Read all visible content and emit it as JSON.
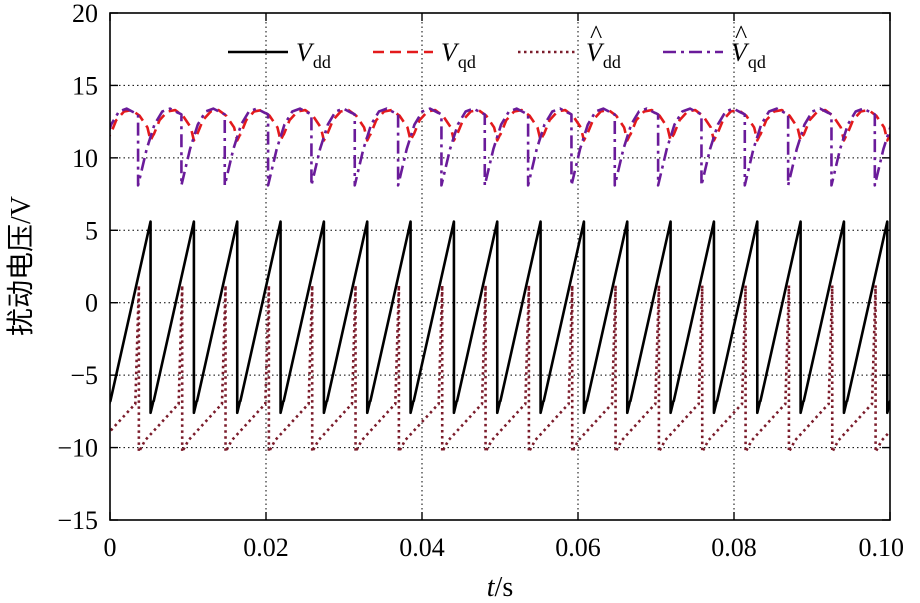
{
  "chart_data": {
    "type": "line",
    "title": "",
    "xlabel": {
      "var": "t",
      "unit": "/s"
    },
    "ylabel": "扰动电压/V",
    "xlim": [
      0,
      0.1
    ],
    "ylim": [
      -15,
      20
    ],
    "xticks": [
      0,
      0.02,
      0.04,
      0.06,
      0.08,
      0.1
    ],
    "xtick_labels": [
      "0",
      "0.02",
      "0.04",
      "0.06",
      "0.08",
      "0.10"
    ],
    "yticks": [
      -15,
      -10,
      -5,
      0,
      5,
      10,
      15,
      20
    ],
    "ytick_labels": [
      "−15",
      "−10",
      "−5",
      "0",
      "5",
      "10",
      "15",
      "20"
    ],
    "grid": true,
    "grid_style": "dotted",
    "legend_position": "top-center",
    "period": 0.005556,
    "series": [
      {
        "name": "V",
        "subscript": "dd",
        "hat": false,
        "color": "#000000",
        "dash": "solid",
        "description": "sawtooth rising from -6.8 to 5.6 V each period, dropping to -7.6 V",
        "x": [
          0,
          0.0052,
          0.0052,
          0.0056
        ],
        "y": [
          -6.8,
          5.6,
          -7.6,
          -6.8
        ],
        "repeat_every": 0.005556
      },
      {
        "name": "V",
        "subscript": "qd",
        "hat": false,
        "color": "#e31a1c",
        "dash": "dashed",
        "description": "arched waveform between about 11.2 and 13.3 V",
        "x": [
          0,
          0.0008,
          0.0018,
          0.0028,
          0.0038,
          0.0048,
          0.0052,
          0.0056
        ],
        "y": [
          11.6,
          12.6,
          13.2,
          13.3,
          12.9,
          12.1,
          11.2,
          11.6
        ],
        "repeat_every": 0.005556
      },
      {
        "name": "V",
        "subscript": "dd",
        "hat": true,
        "color": "#7b1c2b",
        "dash": "dotted",
        "description": "rises from -10.3 to 1.2 V then drops sharply",
        "x": [
          0,
          0.0005,
          0.0005,
          0.0013,
          0.0056
        ],
        "y": [
          -7.0,
          1.2,
          -10.3,
          -9.5,
          -7.0
        ],
        "x_shift": 0.0032,
        "repeat_every": 0.005556
      },
      {
        "name": "V",
        "subscript": "qd",
        "hat": true,
        "color": "#6a1b9a",
        "dash": "dashdot",
        "description": "falls to about 8.1 V once per period, recovering to about 13.4 V",
        "x": [
          0,
          0.0004,
          0.0004,
          0.0015,
          0.0025,
          0.0035,
          0.0045,
          0.0056
        ],
        "y": [
          13.1,
          13.0,
          8.1,
          10.6,
          12.3,
          13.2,
          13.4,
          13.1
        ],
        "x_shift": 0.0032,
        "repeat_every": 0.005556
      }
    ]
  }
}
